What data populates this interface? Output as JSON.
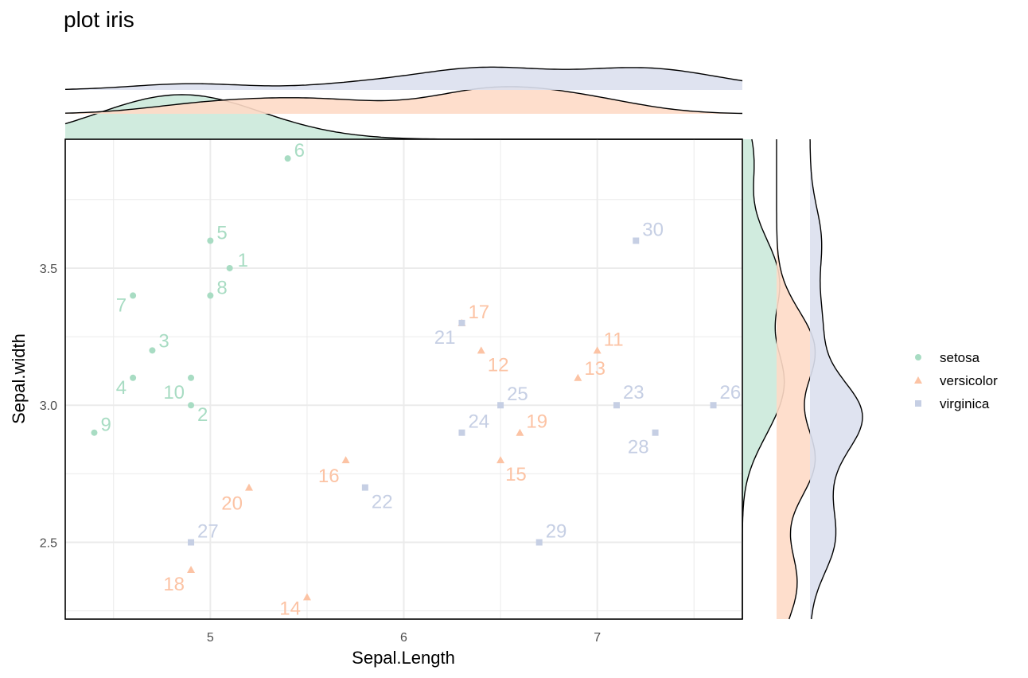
{
  "chart_data": {
    "type": "scatter",
    "title": "plot iris",
    "xlabel": "Sepal.Length",
    "ylabel": "Sepal.width",
    "xlim": [
      4.25,
      7.75
    ],
    "ylim": [
      2.22,
      3.97
    ],
    "x_ticks": [
      5,
      6,
      7
    ],
    "y_ticks": [
      2.5,
      3.0,
      3.5
    ],
    "grid": true,
    "legend_position": "right",
    "marginal_density": "top and right",
    "series": [
      {
        "name": "setosa",
        "color": "#66c2a5",
        "marker": "circle",
        "points": [
          {
            "label": "1",
            "x": 5.1,
            "y": 3.5
          },
          {
            "label": "2",
            "x": 4.9,
            "y": 3.0
          },
          {
            "label": "3",
            "x": 4.7,
            "y": 3.2
          },
          {
            "label": "4",
            "x": 4.6,
            "y": 3.1
          },
          {
            "label": "5",
            "x": 5.0,
            "y": 3.6
          },
          {
            "label": "6",
            "x": 5.4,
            "y": 3.9
          },
          {
            "label": "7",
            "x": 4.6,
            "y": 3.4
          },
          {
            "label": "8",
            "x": 5.0,
            "y": 3.4
          },
          {
            "label": "9",
            "x": 4.4,
            "y": 2.9
          },
          {
            "label": "10",
            "x": 4.9,
            "y": 3.1
          }
        ]
      },
      {
        "name": "versicolor",
        "color": "#fc8d62",
        "marker": "triangle",
        "points": [
          {
            "label": "11",
            "x": 7.0,
            "y": 3.2
          },
          {
            "label": "12",
            "x": 6.4,
            "y": 3.2
          },
          {
            "label": "13",
            "x": 6.9,
            "y": 3.1
          },
          {
            "label": "14",
            "x": 5.5,
            "y": 2.3
          },
          {
            "label": "15",
            "x": 6.5,
            "y": 2.8
          },
          {
            "label": "16",
            "x": 5.7,
            "y": 2.8
          },
          {
            "label": "17",
            "x": 6.3,
            "y": 3.3
          },
          {
            "label": "18",
            "x": 4.9,
            "y": 2.4
          },
          {
            "label": "19",
            "x": 6.6,
            "y": 2.9
          },
          {
            "label": "20",
            "x": 5.2,
            "y": 2.7
          }
        ]
      },
      {
        "name": "virginica",
        "color": "#8da0cb",
        "marker": "square",
        "points": [
          {
            "label": "21",
            "x": 6.3,
            "y": 3.3
          },
          {
            "label": "22",
            "x": 5.8,
            "y": 2.7
          },
          {
            "label": "23",
            "x": 7.1,
            "y": 3.0
          },
          {
            "label": "24",
            "x": 6.3,
            "y": 2.9
          },
          {
            "label": "25",
            "x": 6.5,
            "y": 3.0
          },
          {
            "label": "26",
            "x": 7.6,
            "y": 3.0
          },
          {
            "label": "27",
            "x": 4.9,
            "y": 2.5
          },
          {
            "label": "28",
            "x": 7.3,
            "y": 2.9
          },
          {
            "label": "29",
            "x": 6.7,
            "y": 2.5
          },
          {
            "label": "30",
            "x": 7.2,
            "y": 3.6
          }
        ]
      }
    ]
  }
}
